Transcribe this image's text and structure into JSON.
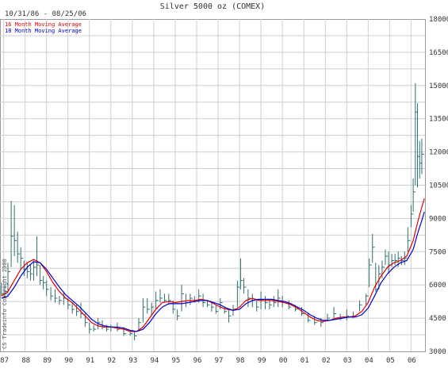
{
  "chart_data": {
    "type": "line",
    "title": "Silver 5000 oz (COMEX)",
    "date_range": "10/31/86 - 08/25/06",
    "copyright": "CS Tradeinfo Copyright 2000",
    "grid": true,
    "legend_position": "top-left",
    "x_range": [
      1986.83,
      2006.65
    ],
    "x_ticks": [
      {
        "label": "87",
        "year": 1987
      },
      {
        "label": "88",
        "year": 1988
      },
      {
        "label": "89",
        "year": 1989
      },
      {
        "label": "90",
        "year": 1990
      },
      {
        "label": "91",
        "year": 1991
      },
      {
        "label": "92",
        "year": 1992
      },
      {
        "label": "93",
        "year": 1993
      },
      {
        "label": "94",
        "year": 1994
      },
      {
        "label": "95",
        "year": 1995
      },
      {
        "label": "96",
        "year": 1996
      },
      {
        "label": "97",
        "year": 1997
      },
      {
        "label": "98",
        "year": 1998
      },
      {
        "label": "99",
        "year": 1999
      },
      {
        "label": "00",
        "year": 2000
      },
      {
        "label": "01",
        "year": 2001
      },
      {
        "label": "02",
        "year": 2002
      },
      {
        "label": "03",
        "year": 2003
      },
      {
        "label": "04",
        "year": 2004
      },
      {
        "label": "05",
        "year": 2005
      },
      {
        "label": "06",
        "year": 2006
      }
    ],
    "y_range": [
      3000,
      18000
    ],
    "y_ticks": [
      {
        "label": "3000",
        "value": 3000
      },
      {
        "label": "4500",
        "value": 4500
      },
      {
        "label": "6000",
        "value": 6000
      },
      {
        "label": "7500",
        "value": 7500
      },
      {
        "label": "9000",
        "value": 9000
      },
      {
        "label": "10500",
        "value": 10500
      },
      {
        "label": "12000",
        "value": 12000
      },
      {
        "label": "13500",
        "value": 13500
      },
      {
        "label": "15000",
        "value": 15000
      },
      {
        "label": "16500",
        "value": 16500
      },
      {
        "label": "18000",
        "value": 18000
      }
    ],
    "price_bars": {
      "color": "#2f6f6f",
      "points": [
        [
          1986.9,
          5500,
          6100,
          5600
        ],
        [
          1987.05,
          5400,
          6000,
          5700
        ],
        [
          1987.2,
          5600,
          7000,
          6600
        ],
        [
          1987.35,
          6800,
          9800,
          8200
        ],
        [
          1987.5,
          7300,
          9600,
          8000
        ],
        [
          1987.65,
          7000,
          8400,
          7400
        ],
        [
          1987.8,
          6700,
          7700,
          7200
        ],
        [
          1987.95,
          6400,
          7100,
          6700
        ],
        [
          1988.1,
          6300,
          7000,
          6600
        ],
        [
          1988.25,
          6200,
          6900,
          6500
        ],
        [
          1988.4,
          6200,
          7100,
          6800
        ],
        [
          1988.55,
          6400,
          8200,
          6900
        ],
        [
          1988.7,
          6000,
          6900,
          6200
        ],
        [
          1988.85,
          5800,
          6400,
          6100
        ],
        [
          1989.0,
          5500,
          6200,
          5800
        ],
        [
          1989.2,
          5300,
          5900,
          5500
        ],
        [
          1989.4,
          5200,
          5800,
          5400
        ],
        [
          1989.6,
          5100,
          5500,
          5300
        ],
        [
          1989.8,
          5100,
          5700,
          5400
        ],
        [
          1990.0,
          4900,
          5400,
          5100
        ],
        [
          1990.2,
          4700,
          5200,
          4900
        ],
        [
          1990.4,
          4600,
          5100,
          4800
        ],
        [
          1990.6,
          4500,
          5200,
          4700
        ],
        [
          1990.8,
          4100,
          4700,
          4300
        ],
        [
          1991.0,
          3800,
          4300,
          4000
        ],
        [
          1991.2,
          3900,
          4200,
          4000
        ],
        [
          1991.4,
          4000,
          4500,
          4300
        ],
        [
          1991.6,
          4000,
          4400,
          4100
        ],
        [
          1991.8,
          3900,
          4200,
          4000
        ],
        [
          1992.0,
          3900,
          4200,
          4100
        ],
        [
          1992.3,
          3900,
          4300,
          4000
        ],
        [
          1992.6,
          3700,
          4100,
          3800
        ],
        [
          1992.9,
          3700,
          3900,
          3800
        ],
        [
          1993.1,
          3500,
          3900,
          3700
        ],
        [
          1993.3,
          3900,
          4500,
          4300
        ],
        [
          1993.5,
          4300,
          5400,
          5000
        ],
        [
          1993.7,
          4700,
          5400,
          4900
        ],
        [
          1993.9,
          4600,
          5200,
          5000
        ],
        [
          1994.1,
          4900,
          5700,
          5300
        ],
        [
          1994.3,
          5200,
          5800,
          5400
        ],
        [
          1994.5,
          5200,
          5600,
          5300
        ],
        [
          1994.7,
          5100,
          5600,
          5300
        ],
        [
          1994.9,
          4700,
          5300,
          4900
        ],
        [
          1995.1,
          4400,
          4900,
          4600
        ],
        [
          1995.3,
          4800,
          6000,
          5600
        ],
        [
          1995.5,
          5000,
          5600,
          5200
        ],
        [
          1995.7,
          5100,
          5600,
          5400
        ],
        [
          1995.9,
          5200,
          5500,
          5300
        ],
        [
          1996.1,
          5200,
          5800,
          5500
        ],
        [
          1996.3,
          5000,
          5600,
          5200
        ],
        [
          1996.5,
          5000,
          5300,
          5100
        ],
        [
          1996.7,
          4800,
          5200,
          5000
        ],
        [
          1996.9,
          4700,
          5100,
          4800
        ],
        [
          1997.1,
          4900,
          5400,
          5200
        ],
        [
          1997.3,
          4700,
          5000,
          4800
        ],
        [
          1997.5,
          4300,
          4900,
          4600
        ],
        [
          1997.7,
          4600,
          5100,
          4900
        ],
        [
          1997.9,
          5000,
          6200,
          5900
        ],
        [
          1998.05,
          5800,
          7200,
          6200
        ],
        [
          1998.2,
          5600,
          6300,
          5900
        ],
        [
          1998.4,
          5000,
          5800,
          5400
        ],
        [
          1998.6,
          5000,
          5600,
          5300
        ],
        [
          1998.8,
          4800,
          5300,
          5000
        ],
        [
          1999.0,
          4900,
          5700,
          5300
        ],
        [
          1999.2,
          4900,
          5500,
          5200
        ],
        [
          1999.4,
          4900,
          5300,
          5100
        ],
        [
          1999.6,
          5000,
          5500,
          5200
        ],
        [
          1999.8,
          5000,
          5800,
          5400
        ],
        [
          2000.0,
          5000,
          5500,
          5200
        ],
        [
          2000.3,
          4900,
          5300,
          5000
        ],
        [
          2000.6,
          4800,
          5100,
          4900
        ],
        [
          2000.9,
          4600,
          5000,
          4700
        ],
        [
          2001.2,
          4300,
          4700,
          4400
        ],
        [
          2001.5,
          4200,
          4600,
          4300
        ],
        [
          2001.8,
          4100,
          4500,
          4300
        ],
        [
          2002.1,
          4400,
          4700,
          4500
        ],
        [
          2002.4,
          4500,
          5000,
          4700
        ],
        [
          2002.7,
          4400,
          4700,
          4500
        ],
        [
          2003.0,
          4400,
          4900,
          4600
        ],
        [
          2003.3,
          4500,
          4800,
          4600
        ],
        [
          2003.6,
          4800,
          5300,
          5100
        ],
        [
          2003.9,
          5100,
          5600,
          5500
        ],
        [
          2004.05,
          5900,
          7200,
          6900
        ],
        [
          2004.2,
          7000,
          8300,
          7700
        ],
        [
          2004.35,
          5700,
          7000,
          5800
        ],
        [
          2004.5,
          5800,
          6900,
          6500
        ],
        [
          2004.65,
          6300,
          7100,
          6800
        ],
        [
          2004.8,
          6900,
          7600,
          7300
        ],
        [
          2004.95,
          6500,
          7500,
          6900
        ],
        [
          2005.1,
          6800,
          7400,
          7100
        ],
        [
          2005.25,
          6900,
          7400,
          7100
        ],
        [
          2005.4,
          6800,
          7500,
          7200
        ],
        [
          2005.55,
          6900,
          7300,
          7100
        ],
        [
          2005.7,
          6900,
          7500,
          7200
        ],
        [
          2005.85,
          7500,
          8600,
          8000
        ],
        [
          2006.0,
          8600,
          9600,
          9200
        ],
        [
          2006.1,
          9300,
          10800,
          10200
        ],
        [
          2006.2,
          10500,
          15100,
          13800
        ],
        [
          2006.3,
          10400,
          14200,
          11800
        ],
        [
          2006.4,
          10800,
          12500,
          11500
        ],
        [
          2006.5,
          11000,
          12600,
          11900
        ]
      ]
    },
    "series": [
      {
        "name": "16 Month Moving Average",
        "color": "#e00000",
        "points": [
          [
            1986.9,
            5500
          ],
          [
            1987.2,
            5700
          ],
          [
            1987.5,
            6200
          ],
          [
            1987.8,
            6700
          ],
          [
            1988.1,
            7000
          ],
          [
            1988.4,
            7150
          ],
          [
            1988.7,
            7000
          ],
          [
            1989.0,
            6600
          ],
          [
            1989.3,
            6100
          ],
          [
            1989.6,
            5700
          ],
          [
            1989.9,
            5400
          ],
          [
            1990.2,
            5200
          ],
          [
            1990.5,
            4900
          ],
          [
            1990.8,
            4600
          ],
          [
            1991.1,
            4300
          ],
          [
            1991.4,
            4150
          ],
          [
            1991.7,
            4100
          ],
          [
            1992.0,
            4100
          ],
          [
            1992.3,
            4050
          ],
          [
            1992.6,
            4000
          ],
          [
            1992.9,
            3900
          ],
          [
            1993.2,
            3900
          ],
          [
            1993.5,
            4100
          ],
          [
            1993.8,
            4500
          ],
          [
            1994.1,
            4900
          ],
          [
            1994.4,
            5200
          ],
          [
            1994.7,
            5250
          ],
          [
            1995.0,
            5200
          ],
          [
            1995.3,
            5250
          ],
          [
            1995.6,
            5300
          ],
          [
            1995.9,
            5300
          ],
          [
            1996.2,
            5350
          ],
          [
            1996.5,
            5300
          ],
          [
            1996.8,
            5150
          ],
          [
            1997.1,
            5000
          ],
          [
            1997.4,
            4900
          ],
          [
            1997.7,
            4850
          ],
          [
            1998.0,
            5000
          ],
          [
            1998.3,
            5300
          ],
          [
            1998.6,
            5400
          ],
          [
            1998.9,
            5300
          ],
          [
            1999.2,
            5300
          ],
          [
            1999.5,
            5300
          ],
          [
            1999.8,
            5250
          ],
          [
            2000.1,
            5200
          ],
          [
            2000.4,
            5100
          ],
          [
            2000.7,
            4950
          ],
          [
            2001.0,
            4750
          ],
          [
            2001.3,
            4550
          ],
          [
            2001.6,
            4400
          ],
          [
            2001.9,
            4350
          ],
          [
            2002.2,
            4400
          ],
          [
            2002.5,
            4500
          ],
          [
            2002.8,
            4550
          ],
          [
            2003.1,
            4550
          ],
          [
            2003.4,
            4600
          ],
          [
            2003.7,
            4800
          ],
          [
            2004.0,
            5200
          ],
          [
            2004.3,
            5900
          ],
          [
            2004.6,
            6400
          ],
          [
            2004.9,
            6800
          ],
          [
            2005.2,
            7000
          ],
          [
            2005.5,
            7100
          ],
          [
            2005.8,
            7300
          ],
          [
            2006.1,
            8000
          ],
          [
            2006.3,
            8800
          ],
          [
            2006.5,
            9500
          ],
          [
            2006.62,
            9900
          ]
        ]
      },
      {
        "name": "18 Month Moving Average",
        "color": "#0000cc",
        "points": [
          [
            1986.9,
            5400
          ],
          [
            1987.2,
            5500
          ],
          [
            1987.5,
            5900
          ],
          [
            1987.8,
            6400
          ],
          [
            1988.1,
            6800
          ],
          [
            1988.4,
            7050
          ],
          [
            1988.7,
            7000
          ],
          [
            1989.0,
            6700
          ],
          [
            1989.3,
            6300
          ],
          [
            1989.6,
            5900
          ],
          [
            1989.9,
            5550
          ],
          [
            1990.2,
            5300
          ],
          [
            1990.5,
            5050
          ],
          [
            1990.8,
            4750
          ],
          [
            1991.1,
            4450
          ],
          [
            1991.4,
            4250
          ],
          [
            1991.7,
            4150
          ],
          [
            1992.0,
            4100
          ],
          [
            1992.3,
            4100
          ],
          [
            1992.6,
            4050
          ],
          [
            1992.9,
            3950
          ],
          [
            1993.2,
            3900
          ],
          [
            1993.5,
            4000
          ],
          [
            1993.8,
            4300
          ],
          [
            1994.1,
            4700
          ],
          [
            1994.4,
            5000
          ],
          [
            1994.7,
            5150
          ],
          [
            1995.0,
            5150
          ],
          [
            1995.3,
            5150
          ],
          [
            1995.6,
            5200
          ],
          [
            1995.9,
            5250
          ],
          [
            1996.2,
            5300
          ],
          [
            1996.5,
            5300
          ],
          [
            1996.8,
            5200
          ],
          [
            1997.1,
            5100
          ],
          [
            1997.4,
            4950
          ],
          [
            1997.7,
            4850
          ],
          [
            1998.0,
            4900
          ],
          [
            1998.3,
            5150
          ],
          [
            1998.6,
            5300
          ],
          [
            1998.9,
            5350
          ],
          [
            1999.2,
            5350
          ],
          [
            1999.5,
            5350
          ],
          [
            1999.8,
            5300
          ],
          [
            2000.1,
            5250
          ],
          [
            2000.4,
            5150
          ],
          [
            2000.7,
            5000
          ],
          [
            2001.0,
            4850
          ],
          [
            2001.3,
            4650
          ],
          [
            2001.6,
            4500
          ],
          [
            2001.9,
            4400
          ],
          [
            2002.2,
            4400
          ],
          [
            2002.5,
            4450
          ],
          [
            2002.8,
            4500
          ],
          [
            2003.1,
            4550
          ],
          [
            2003.4,
            4550
          ],
          [
            2003.7,
            4650
          ],
          [
            2004.0,
            4950
          ],
          [
            2004.3,
            5500
          ],
          [
            2004.6,
            6100
          ],
          [
            2004.9,
            6500
          ],
          [
            2005.2,
            6800
          ],
          [
            2005.5,
            7000
          ],
          [
            2005.8,
            7100
          ],
          [
            2006.1,
            7600
          ],
          [
            2006.3,
            8300
          ],
          [
            2006.5,
            8900
          ],
          [
            2006.62,
            9300
          ]
        ]
      }
    ]
  }
}
